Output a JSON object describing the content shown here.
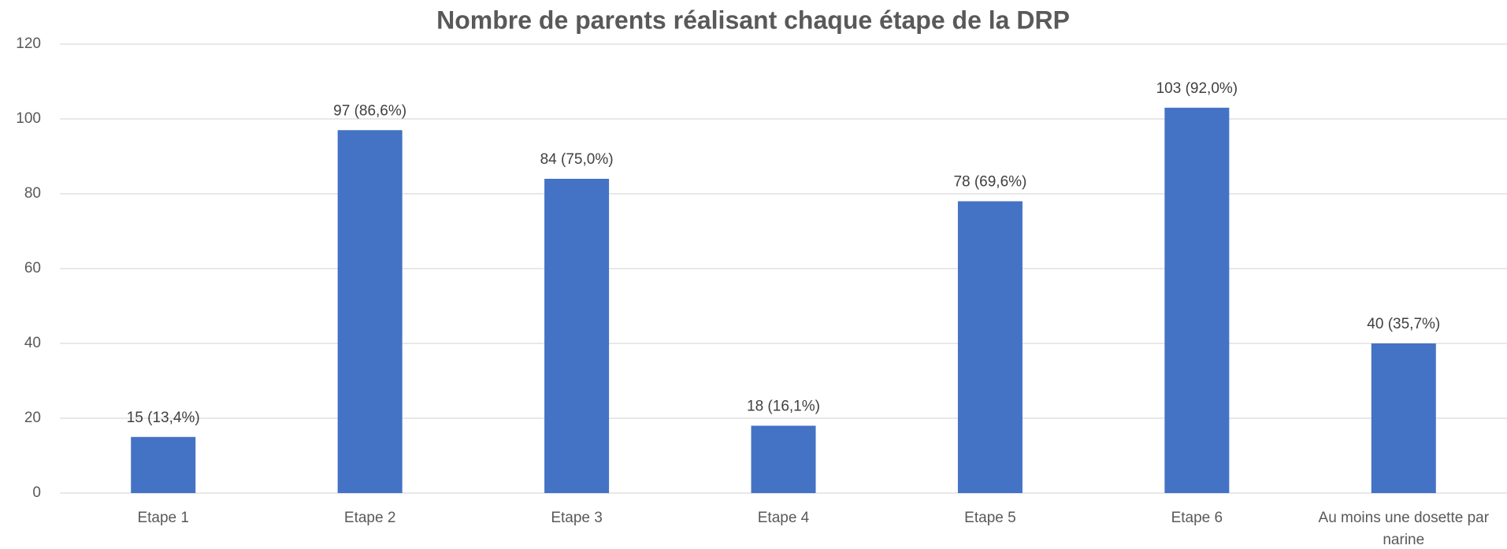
{
  "chart_data": {
    "type": "bar",
    "title": "Nombre de parents réalisant chaque étape de la DRP",
    "categories": [
      "Etape 1",
      "Etape 2",
      "Etape 3",
      "Etape 4",
      "Etape 5",
      "Etape 6",
      "Au moins une dosette par narine"
    ],
    "values": [
      15,
      97,
      84,
      18,
      78,
      103,
      40
    ],
    "value_labels": [
      "15 (13,4%)",
      "97 (86,6%)",
      "84 (75,0%)",
      "18 (16,1%)",
      "78 (69,6%)",
      "103 (92,0%)",
      "40 (35,7%)"
    ],
    "color": "#4472c4",
    "ylim": [
      0,
      120
    ],
    "yticks": [
      0,
      20,
      40,
      60,
      80,
      100,
      120
    ],
    "grid": true
  }
}
